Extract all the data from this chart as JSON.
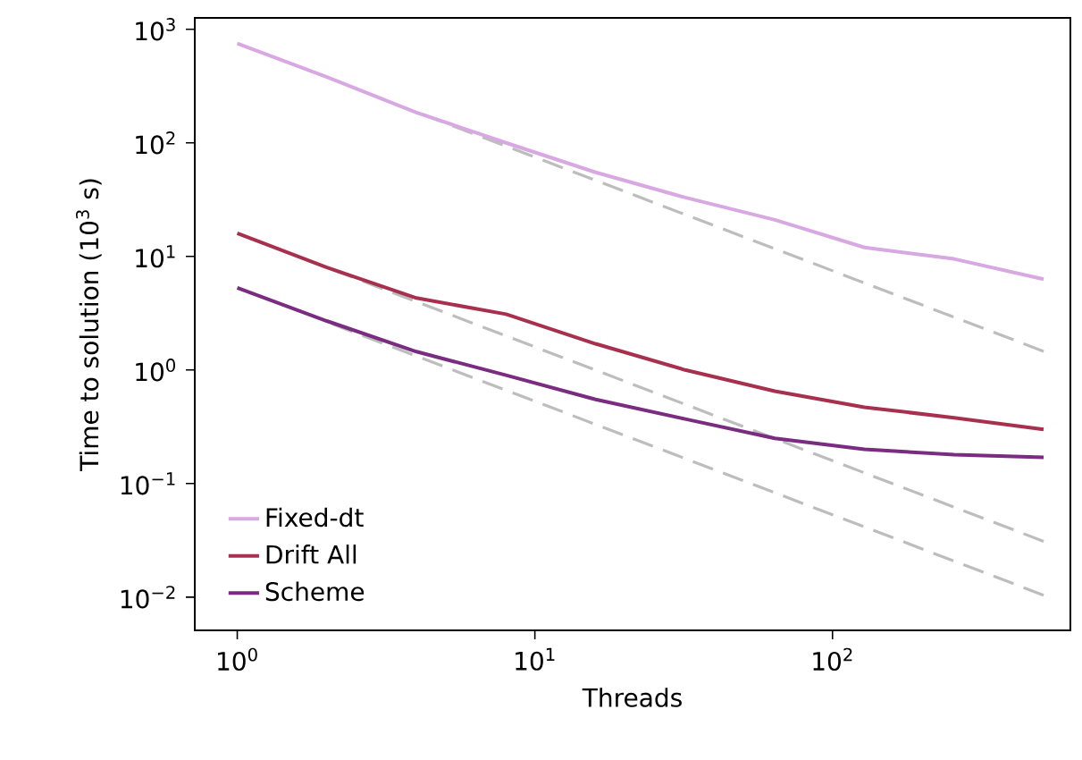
{
  "chart_data": {
    "type": "line",
    "xlabel": "Threads",
    "ylabel": "Time to solution (10$^{3}$ s)",
    "log": "xy",
    "grid": false,
    "legend": "bottom left",
    "xlim": [
      0.72,
      630
    ],
    "ylim": [
      0.0051,
      1260
    ],
    "xticks": [
      {
        "value": 1,
        "label": "10$^{0}$"
      },
      {
        "value": 10,
        "label": "10$^{1}$"
      },
      {
        "value": 100,
        "label": "10$^{2}$"
      }
    ],
    "yticks": [
      {
        "value": 0.01,
        "label": "10$^{−2}$"
      },
      {
        "value": 0.1,
        "label": "10$^{−1}$"
      },
      {
        "value": 1,
        "label": "10$^{0}$"
      },
      {
        "value": 10,
        "label": "10$^{1}$"
      },
      {
        "value": 100,
        "label": "10$^{2}$"
      },
      {
        "value": 1000,
        "label": "10$^{3}$"
      }
    ],
    "x": [
      1,
      2,
      4,
      8,
      16,
      32,
      64,
      128,
      256,
      512
    ],
    "series": [
      {
        "color": "#bdbdbd",
        "line_style": "dashed",
        "x": [
          4,
          512
        ],
        "values": [
          187,
          1.46
        ]
      },
      {
        "color": "#bdbdbd",
        "line_style": "dashed",
        "x": [
          2,
          512
        ],
        "values": [
          8,
          0.031
        ]
      },
      {
        "color": "#bdbdbd",
        "line_style": "dashed",
        "x": [
          2,
          512
        ],
        "values": [
          2.65,
          0.0104
        ]
      },
      {
        "name": "Fixed-dt",
        "color": "#d8a8e2",
        "line_style": "solid",
        "values": [
          750,
          380,
          185,
          100,
          55,
          33,
          21,
          12,
          9.5,
          6.3
        ]
      },
      {
        "name": "Drift All",
        "color": "#a8304f",
        "line_style": "solid",
        "values": [
          16,
          8,
          4.3,
          3.1,
          1.7,
          1.0,
          0.65,
          0.47,
          0.38,
          0.3
        ]
      },
      {
        "name": "Scheme",
        "color": "#7a2c80",
        "line_style": "solid",
        "values": [
          5.3,
          2.7,
          1.45,
          0.9,
          0.55,
          0.37,
          0.25,
          0.2,
          0.18,
          0.17
        ]
      }
    ]
  }
}
